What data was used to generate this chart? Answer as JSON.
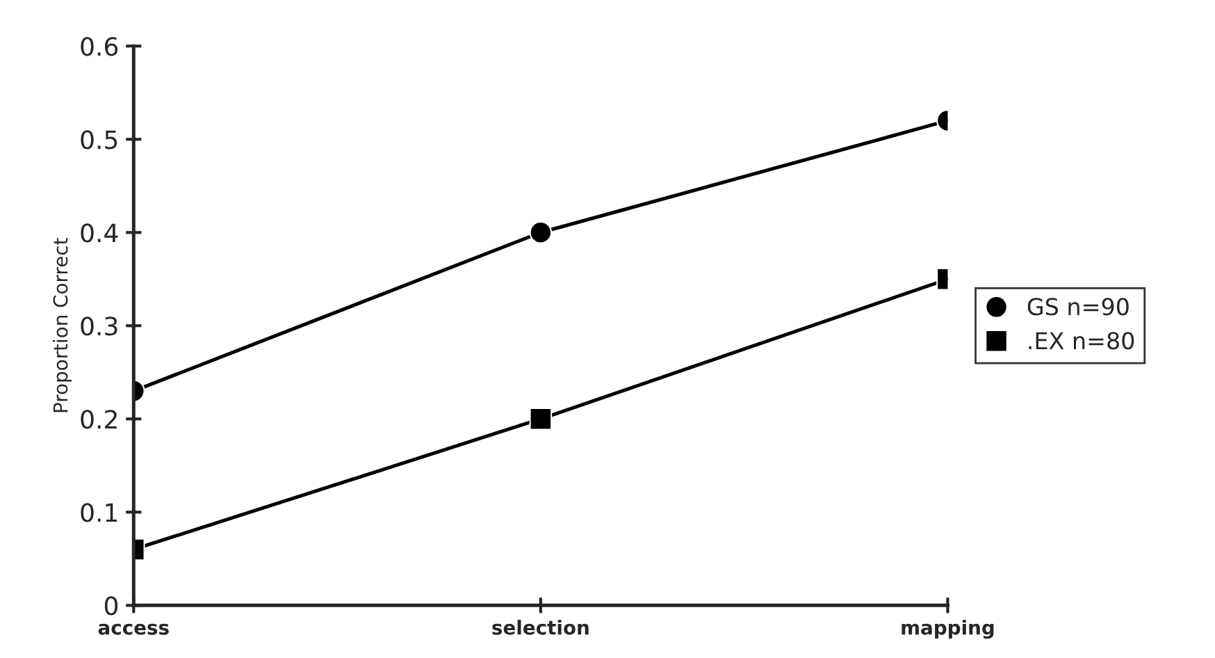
{
  "chart_data": {
    "type": "line",
    "ylabel": "Proportion Correct",
    "categories": [
      "access",
      "selection",
      "mapping"
    ],
    "series": [
      {
        "name": "GS n=90",
        "color": "#000000",
        "marker": "circle",
        "values": [
          0.23,
          0.4,
          0.52
        ]
      },
      {
        "name": ".EX n=80",
        "color": "#000000",
        "marker": "square",
        "values": [
          0.06,
          0.2,
          0.35
        ]
      }
    ],
    "ylim": [
      0,
      0.6
    ],
    "yticks": [
      0,
      0.1,
      0.2,
      0.3,
      0.4,
      0.5,
      0.6
    ],
    "grid": false,
    "legend": "right",
    "line_style": "solid"
  }
}
